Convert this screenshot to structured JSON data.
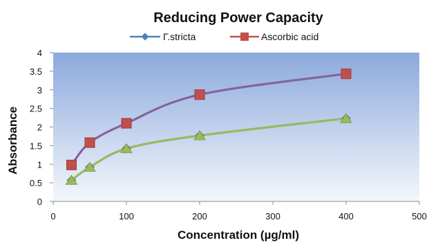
{
  "chart_data": {
    "type": "line",
    "title": "Reducing Power Capacity",
    "xlabel": "Concentration (µg/ml)",
    "ylabel": "Absorbance",
    "xlim": [
      0,
      500
    ],
    "ylim": [
      0,
      4
    ],
    "xticks": [
      0,
      100,
      200,
      300,
      400,
      500
    ],
    "yticks": [
      0,
      0.5,
      1,
      1.5,
      2,
      2.5,
      3,
      3.5,
      4
    ],
    "xtick_labels": [
      "0",
      "100",
      "200",
      "300",
      "400",
      "500"
    ],
    "ytick_labels": [
      "0",
      "0.5",
      "1",
      "1.5",
      "2",
      "2.5",
      "3",
      "3.5",
      "4"
    ],
    "grid": false,
    "legend_position": "top",
    "smooth": true,
    "x": [
      25,
      50,
      100,
      200,
      400
    ],
    "series": [
      {
        "name": "Γ.stricta",
        "values": [
          0.57,
          0.92,
          1.42,
          1.77,
          2.23
        ],
        "line_color": "#4F81BD",
        "marker": "diamond",
        "marker_color": "#4F81BD",
        "overlay_color": "#9BBB59",
        "overlay_marker": "triangle"
      },
      {
        "name": "Ascorbic acid",
        "values": [
          0.98,
          1.58,
          2.1,
          2.87,
          3.43
        ],
        "line_color": "#C0504D",
        "marker": "square",
        "marker_color": "#C0504D",
        "overlay_color": "#8064A2"
      }
    ],
    "plot_background": {
      "top": "#8CA9DC",
      "bottom": "#F4F7FC"
    }
  }
}
